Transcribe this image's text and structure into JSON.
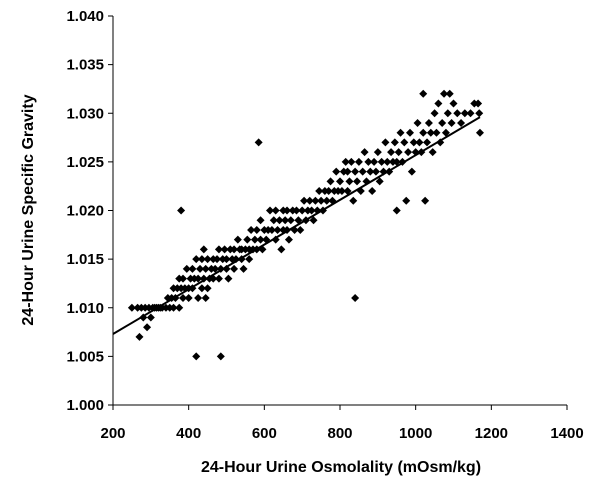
{
  "chart_data": {
    "type": "scatter",
    "title": "",
    "xlabel": "24-Hour Urine Osmolality (mOsm/kg)",
    "ylabel": "24-Hour Urine Specific Gravity",
    "xlim": [
      200,
      1400
    ],
    "ylim": [
      1.0,
      1.04
    ],
    "xticks": [
      "200",
      "400",
      "600",
      "800",
      "1000",
      "1200",
      "1400"
    ],
    "yticks": [
      "1.000",
      "1.005",
      "1.010",
      "1.015",
      "1.020",
      "1.025",
      "1.030",
      "1.035",
      "1.040"
    ],
    "grid": false,
    "legend": "none",
    "marker": "diamond",
    "marker_color": "#000000",
    "trendline": {
      "type": "linear",
      "x": [
        200,
        1170
      ],
      "y": [
        1.0073,
        1.0296
      ]
    },
    "points": [
      [
        250,
        1.01
      ],
      [
        265,
        1.01
      ],
      [
        270,
        1.007
      ],
      [
        275,
        1.01
      ],
      [
        280,
        1.009
      ],
      [
        285,
        1.01
      ],
      [
        290,
        1.008
      ],
      [
        295,
        1.01
      ],
      [
        300,
        1.009
      ],
      [
        305,
        1.01
      ],
      [
        310,
        1.01
      ],
      [
        315,
        1.01
      ],
      [
        320,
        1.01
      ],
      [
        325,
        1.01
      ],
      [
        330,
        1.01
      ],
      [
        340,
        1.01
      ],
      [
        345,
        1.011
      ],
      [
        350,
        1.01
      ],
      [
        355,
        1.011
      ],
      [
        360,
        1.01
      ],
      [
        360,
        1.012
      ],
      [
        365,
        1.011
      ],
      [
        370,
        1.012
      ],
      [
        375,
        1.01
      ],
      [
        375,
        1.013
      ],
      [
        380,
        1.012
      ],
      [
        380,
        1.02
      ],
      [
        385,
        1.011
      ],
      [
        385,
        1.013
      ],
      [
        390,
        1.012
      ],
      [
        395,
        1.014
      ],
      [
        400,
        1.012
      ],
      [
        400,
        1.011
      ],
      [
        405,
        1.013
      ],
      [
        410,
        1.012
      ],
      [
        410,
        1.014
      ],
      [
        415,
        1.013
      ],
      [
        420,
        1.015
      ],
      [
        420,
        1.005
      ],
      [
        425,
        1.011
      ],
      [
        425,
        1.013
      ],
      [
        430,
        1.014
      ],
      [
        435,
        1.012
      ],
      [
        435,
        1.015
      ],
      [
        440,
        1.013
      ],
      [
        440,
        1.016
      ],
      [
        445,
        1.011
      ],
      [
        445,
        1.014
      ],
      [
        450,
        1.012
      ],
      [
        450,
        1.015
      ],
      [
        455,
        1.013
      ],
      [
        460,
        1.014
      ],
      [
        465,
        1.013
      ],
      [
        465,
        1.015
      ],
      [
        470,
        1.014
      ],
      [
        475,
        1.015
      ],
      [
        480,
        1.013
      ],
      [
        480,
        1.016
      ],
      [
        485,
        1.005
      ],
      [
        485,
        1.014
      ],
      [
        490,
        1.015
      ],
      [
        495,
        1.016
      ],
      [
        500,
        1.014
      ],
      [
        500,
        1.015
      ],
      [
        505,
        1.013
      ],
      [
        510,
        1.016
      ],
      [
        515,
        1.015
      ],
      [
        520,
        1.014
      ],
      [
        520,
        1.016
      ],
      [
        525,
        1.015
      ],
      [
        530,
        1.017
      ],
      [
        535,
        1.016
      ],
      [
        540,
        1.015
      ],
      [
        540,
        1.016
      ],
      [
        545,
        1.014
      ],
      [
        550,
        1.016
      ],
      [
        555,
        1.017
      ],
      [
        560,
        1.015
      ],
      [
        560,
        1.016
      ],
      [
        565,
        1.018
      ],
      [
        570,
        1.016
      ],
      [
        575,
        1.017
      ],
      [
        580,
        1.016
      ],
      [
        580,
        1.018
      ],
      [
        585,
        1.027
      ],
      [
        590,
        1.017
      ],
      [
        590,
        1.019
      ],
      [
        595,
        1.016
      ],
      [
        600,
        1.018
      ],
      [
        605,
        1.017
      ],
      [
        610,
        1.018
      ],
      [
        615,
        1.02
      ],
      [
        620,
        1.018
      ],
      [
        625,
        1.019
      ],
      [
        630,
        1.017
      ],
      [
        630,
        1.02
      ],
      [
        635,
        1.018
      ],
      [
        640,
        1.019
      ],
      [
        645,
        1.016
      ],
      [
        650,
        1.018
      ],
      [
        650,
        1.02
      ],
      [
        655,
        1.019
      ],
      [
        660,
        1.018
      ],
      [
        660,
        1.02
      ],
      [
        665,
        1.017
      ],
      [
        670,
        1.019
      ],
      [
        675,
        1.02
      ],
      [
        680,
        1.018
      ],
      [
        685,
        1.02
      ],
      [
        690,
        1.019
      ],
      [
        695,
        1.018
      ],
      [
        700,
        1.02
      ],
      [
        705,
        1.021
      ],
      [
        710,
        1.019
      ],
      [
        715,
        1.02
      ],
      [
        720,
        1.021
      ],
      [
        725,
        1.02
      ],
      [
        730,
        1.019
      ],
      [
        735,
        1.021
      ],
      [
        740,
        1.02
      ],
      [
        745,
        1.022
      ],
      [
        750,
        1.021
      ],
      [
        755,
        1.02
      ],
      [
        760,
        1.022
      ],
      [
        765,
        1.021
      ],
      [
        770,
        1.022
      ],
      [
        775,
        1.023
      ],
      [
        780,
        1.021
      ],
      [
        785,
        1.022
      ],
      [
        790,
        1.024
      ],
      [
        795,
        1.022
      ],
      [
        800,
        1.023
      ],
      [
        805,
        1.022
      ],
      [
        810,
        1.024
      ],
      [
        815,
        1.025
      ],
      [
        820,
        1.022
      ],
      [
        820,
        1.024
      ],
      [
        825,
        1.023
      ],
      [
        830,
        1.025
      ],
      [
        835,
        1.021
      ],
      [
        840,
        1.024
      ],
      [
        840,
        1.011
      ],
      [
        845,
        1.023
      ],
      [
        850,
        1.025
      ],
      [
        855,
        1.022
      ],
      [
        860,
        1.024
      ],
      [
        865,
        1.026
      ],
      [
        870,
        1.023
      ],
      [
        875,
        1.025
      ],
      [
        880,
        1.024
      ],
      [
        885,
        1.022
      ],
      [
        890,
        1.025
      ],
      [
        895,
        1.024
      ],
      [
        900,
        1.026
      ],
      [
        905,
        1.023
      ],
      [
        910,
        1.025
      ],
      [
        915,
        1.024
      ],
      [
        920,
        1.027
      ],
      [
        925,
        1.025
      ],
      [
        930,
        1.024
      ],
      [
        935,
        1.026
      ],
      [
        940,
        1.025
      ],
      [
        945,
        1.027
      ],
      [
        950,
        1.02
      ],
      [
        950,
        1.025
      ],
      [
        955,
        1.026
      ],
      [
        960,
        1.028
      ],
      [
        965,
        1.025
      ],
      [
        970,
        1.027
      ],
      [
        975,
        1.021
      ],
      [
        980,
        1.026
      ],
      [
        985,
        1.028
      ],
      [
        990,
        1.024
      ],
      [
        995,
        1.027
      ],
      [
        1000,
        1.026
      ],
      [
        1005,
        1.029
      ],
      [
        1010,
        1.027
      ],
      [
        1015,
        1.026
      ],
      [
        1020,
        1.028
      ],
      [
        1020,
        1.032
      ],
      [
        1025,
        1.021
      ],
      [
        1030,
        1.027
      ],
      [
        1035,
        1.029
      ],
      [
        1040,
        1.028
      ],
      [
        1045,
        1.026
      ],
      [
        1050,
        1.03
      ],
      [
        1055,
        1.028
      ],
      [
        1060,
        1.031
      ],
      [
        1065,
        1.027
      ],
      [
        1070,
        1.029
      ],
      [
        1075,
        1.032
      ],
      [
        1080,
        1.028
      ],
      [
        1085,
        1.03
      ],
      [
        1090,
        1.032
      ],
      [
        1095,
        1.029
      ],
      [
        1100,
        1.031
      ],
      [
        1110,
        1.03
      ],
      [
        1120,
        1.029
      ],
      [
        1130,
        1.03
      ],
      [
        1145,
        1.03
      ],
      [
        1155,
        1.031
      ],
      [
        1165,
        1.031
      ],
      [
        1170,
        1.028
      ],
      [
        1168,
        1.03
      ]
    ]
  }
}
